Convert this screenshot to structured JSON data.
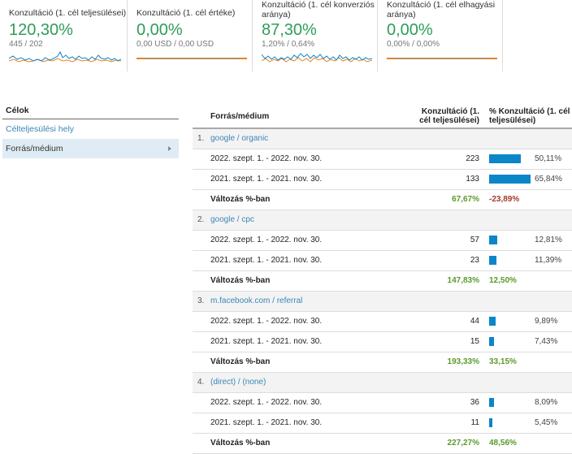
{
  "scorecards": [
    {
      "title": "Konzultáció (1. cél teljesülései)",
      "value": "120,30%",
      "sub": "445 / 202",
      "sparkline": "noisy"
    },
    {
      "title": "Konzultáció (1. cél értéke)",
      "value": "0,00%",
      "sub": "0,00 USD / 0,00 USD",
      "sparkline": "flat"
    },
    {
      "title": "Konzultáció (1. cél konverziós aránya)",
      "value": "87,30%",
      "sub": "1,20% / 0,64%",
      "sparkline": "noisy"
    },
    {
      "title": "Konzultáció (1. cél elhagyási aránya)",
      "value": "0,00%",
      "sub": "0,00% / 0,00%",
      "sparkline": "flat"
    }
  ],
  "colors": {
    "current": "#0b86c8",
    "previous": "#e8821e",
    "positive": "#5a9a2a",
    "negative": "#a23b2b",
    "accent_green": "#2e9c5a"
  },
  "sidebar": {
    "heading": "Célok",
    "items": [
      {
        "label": "Célteljesülési hely"
      },
      {
        "label": "Forrás/médium"
      }
    ]
  },
  "table": {
    "headers": {
      "dimension": "Forrás/médium",
      "col1": "Konzultáció (1. cél teljesülései)",
      "col2": "% Konzultáció (1. cél teljesülései)"
    },
    "groups": [
      {
        "index": "1.",
        "name": "google / organic",
        "rows": [
          {
            "label": "2022. szept. 1. - 2022. nov. 30.",
            "value": "223",
            "pct": "50,11%",
            "bar": 50.11
          },
          {
            "label": "2021. szept. 1. - 2021. nov. 30.",
            "value": "133",
            "pct": "65,84%",
            "bar": 65.84
          }
        ],
        "change": {
          "label": "Változás %-ban",
          "value": "67,67%",
          "pct": "-23,89%"
        }
      },
      {
        "index": "2.",
        "name": "google / cpc",
        "rows": [
          {
            "label": "2022. szept. 1. - 2022. nov. 30.",
            "value": "57",
            "pct": "12,81%",
            "bar": 12.81
          },
          {
            "label": "2021. szept. 1. - 2021. nov. 30.",
            "value": "23",
            "pct": "11,39%",
            "bar": 11.39
          }
        ],
        "change": {
          "label": "Változás %-ban",
          "value": "147,83%",
          "pct": "12,50%"
        }
      },
      {
        "index": "3.",
        "name": "m.facebook.com / referral",
        "rows": [
          {
            "label": "2022. szept. 1. - 2022. nov. 30.",
            "value": "44",
            "pct": "9,89%",
            "bar": 9.89
          },
          {
            "label": "2021. szept. 1. - 2021. nov. 30.",
            "value": "15",
            "pct": "7,43%",
            "bar": 7.43
          }
        ],
        "change": {
          "label": "Változás %-ban",
          "value": "193,33%",
          "pct": "33,15%"
        }
      },
      {
        "index": "4.",
        "name": "(direct) / (none)",
        "rows": [
          {
            "label": "2022. szept. 1. - 2022. nov. 30.",
            "value": "36",
            "pct": "8,09%",
            "bar": 8.09
          },
          {
            "label": "2021. szept. 1. - 2021. nov. 30.",
            "value": "11",
            "pct": "5,45%",
            "bar": 5.45
          }
        ],
        "change": {
          "label": "Változás %-ban",
          "value": "227,27%",
          "pct": "48,56%"
        }
      }
    ]
  }
}
